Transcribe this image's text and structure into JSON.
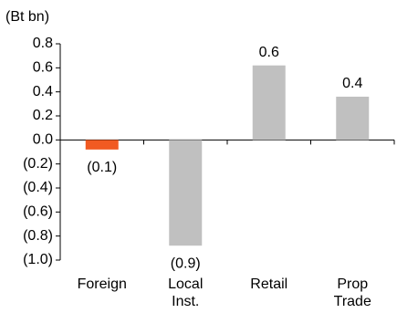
{
  "chart_data": {
    "type": "bar",
    "y_label": "(Bt bn)",
    "categories": [
      "Foreign",
      "Local Inst.",
      "Retail",
      "Prop Trade"
    ],
    "values": [
      -0.08,
      -0.88,
      0.62,
      0.36
    ],
    "value_labels": [
      "(0.1)",
      "(0.9)",
      "0.6",
      "0.4"
    ],
    "colors": [
      "#f15a22",
      "#c0c0c0",
      "#c0c0c0",
      "#c0c0c0"
    ],
    "ylim": [
      -1.0,
      0.8
    ],
    "yticks": [
      {
        "value": -1.0,
        "label": "(1.0)"
      },
      {
        "value": -0.8,
        "label": "(0.8)"
      },
      {
        "value": -0.6,
        "label": "(0.6)"
      },
      {
        "value": -0.4,
        "label": "(0.4)"
      },
      {
        "value": -0.2,
        "label": "(0.2)"
      },
      {
        "value": 0,
        "label": "0.0"
      },
      0.2,
      0.4,
      0.6,
      0.8
    ],
    "grid": false
  }
}
